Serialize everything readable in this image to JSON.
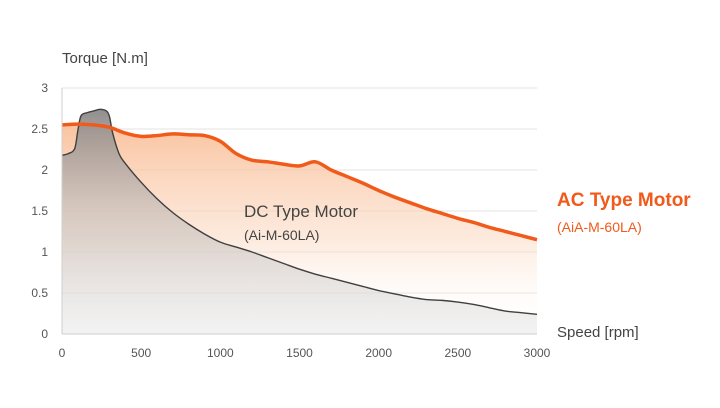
{
  "chart_data": {
    "type": "area",
    "ylabel": "Torque [N.m]",
    "xlabel": "Speed [rpm]",
    "xlim": [
      0,
      3000
    ],
    "ylim": [
      0,
      3
    ],
    "x_ticks": [
      0,
      500,
      1000,
      1500,
      2000,
      2500,
      3000
    ],
    "y_ticks": [
      0,
      0.5,
      1,
      1.5,
      2,
      2.5,
      3
    ],
    "y_tick_labels": [
      "0",
      "0.5",
      "1",
      "1.5",
      "2",
      "2.5",
      "3"
    ],
    "grid": true,
    "series": [
      {
        "name": "DC Type Motor",
        "model": "(Ai-M-60LA)",
        "color": "#8a8a8a",
        "x": [
          0,
          40,
          80,
          100,
          120,
          160,
          200,
          240,
          280,
          300,
          320,
          360,
          400,
          500,
          600,
          700,
          800,
          900,
          1000,
          1100,
          1200,
          1300,
          1400,
          1500,
          1600,
          1700,
          1800,
          1900,
          2000,
          2100,
          2200,
          2300,
          2400,
          2500,
          2600,
          2700,
          2800,
          2900,
          3000
        ],
        "y": [
          2.18,
          2.2,
          2.26,
          2.48,
          2.66,
          2.7,
          2.72,
          2.74,
          2.72,
          2.65,
          2.45,
          2.2,
          2.08,
          1.85,
          1.65,
          1.48,
          1.34,
          1.22,
          1.12,
          1.06,
          1.0,
          0.93,
          0.86,
          0.79,
          0.73,
          0.68,
          0.63,
          0.58,
          0.53,
          0.49,
          0.45,
          0.42,
          0.41,
          0.39,
          0.36,
          0.32,
          0.28,
          0.26,
          0.24
        ]
      },
      {
        "name": "AC Type Motor",
        "model": "(AiA-M-60LA)",
        "color": "#f05a1a",
        "x": [
          0,
          100,
          200,
          300,
          400,
          500,
          600,
          700,
          800,
          900,
          1000,
          1100,
          1200,
          1300,
          1400,
          1500,
          1600,
          1700,
          1800,
          1900,
          2000,
          2100,
          2200,
          2300,
          2400,
          2500,
          2600,
          2700,
          2800,
          2900,
          3000
        ],
        "y": [
          2.55,
          2.56,
          2.55,
          2.52,
          2.45,
          2.41,
          2.42,
          2.44,
          2.43,
          2.42,
          2.35,
          2.2,
          2.12,
          2.1,
          2.07,
          2.05,
          2.1,
          2.0,
          1.92,
          1.84,
          1.75,
          1.67,
          1.6,
          1.53,
          1.47,
          1.41,
          1.36,
          1.3,
          1.25,
          1.2,
          1.15
        ]
      }
    ]
  }
}
